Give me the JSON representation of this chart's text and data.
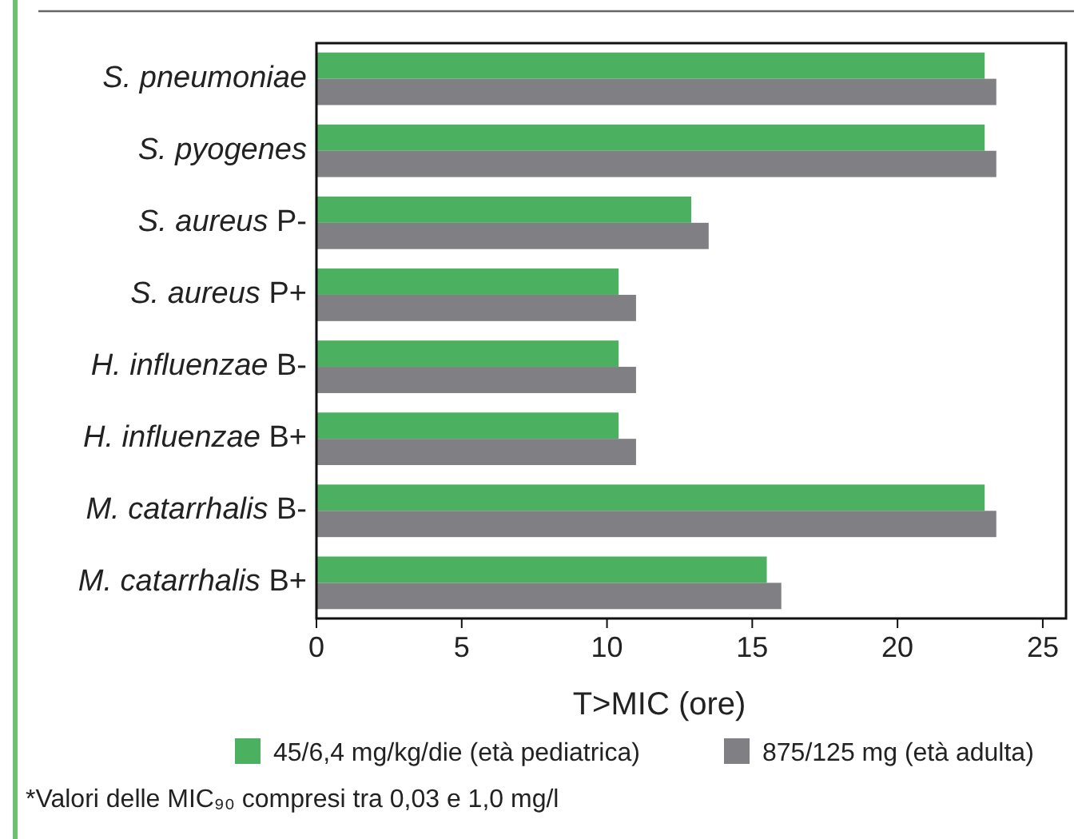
{
  "chart_data": {
    "type": "bar",
    "orientation": "horizontal",
    "xlabel": "T>MIC (ore)",
    "categories": [
      "S. pneumoniae",
      "S. pyogenes",
      "S. aureus P-",
      "S. aureus P+",
      "H. influenzae B-",
      "H. influenzae B+",
      "M. catarrhalis B-",
      "M. catarrhalis B+"
    ],
    "series": [
      {
        "name": "45/6,4 mg/kg/die (età pediatrica)",
        "color": "#4bb05f",
        "values": [
          23.0,
          23.0,
          12.9,
          10.4,
          10.4,
          10.4,
          23.0,
          15.5
        ]
      },
      {
        "name": "875/125 mg (età adulta)",
        "color": "#808084",
        "values": [
          23.4,
          23.4,
          13.5,
          11.0,
          11.0,
          11.0,
          23.4,
          16.0
        ]
      }
    ],
    "xlim": [
      0,
      25.8
    ],
    "xticks": [
      0,
      5,
      10,
      15,
      20,
      25
    ],
    "grid": false,
    "legend": "bottom",
    "annotations": [
      "*Valori delle MIC₉₀ compresi tra 0,03 e 1,0 mg/l"
    ]
  }
}
